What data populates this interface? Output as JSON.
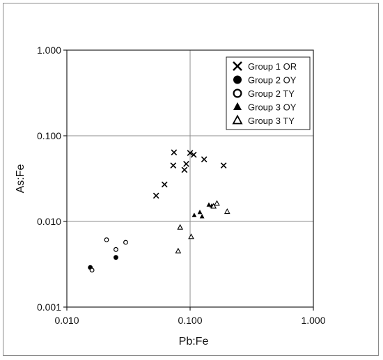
{
  "chart_data": {
    "type": "scatter",
    "xscale": "log",
    "yscale": "log",
    "xlim": [
      0.01,
      1
    ],
    "ylim": [
      0.001,
      1
    ],
    "xlabel": "Pb:Fe",
    "ylabel": "As:Fe",
    "xticks": [
      "0.010",
      "0.100",
      "1.000"
    ],
    "yticks": [
      "0.001",
      "0.010",
      "0.100",
      "1.000"
    ],
    "grid": true,
    "legend_position": "top-right",
    "series": [
      {
        "name": "Group 1 OR",
        "marker": "x",
        "points": [
          {
            "x": 0.053,
            "y": 0.02
          },
          {
            "x": 0.062,
            "y": 0.027
          },
          {
            "x": 0.073,
            "y": 0.045
          },
          {
            "x": 0.074,
            "y": 0.064
          },
          {
            "x": 0.09,
            "y": 0.04
          },
          {
            "x": 0.093,
            "y": 0.047
          },
          {
            "x": 0.1,
            "y": 0.063
          },
          {
            "x": 0.107,
            "y": 0.06
          },
          {
            "x": 0.13,
            "y": 0.053
          },
          {
            "x": 0.187,
            "y": 0.045
          }
        ]
      },
      {
        "name": "Group 2 OY",
        "marker": "filled-circle",
        "points": [
          {
            "x": 0.0155,
            "y": 0.0029
          },
          {
            "x": 0.025,
            "y": 0.0038
          }
        ]
      },
      {
        "name": "Group 2 TY",
        "marker": "open-circle",
        "points": [
          {
            "x": 0.016,
            "y": 0.0027
          },
          {
            "x": 0.021,
            "y": 0.0061
          },
          {
            "x": 0.025,
            "y": 0.0047
          },
          {
            "x": 0.03,
            "y": 0.0057
          }
        ]
      },
      {
        "name": "Group 3 OY",
        "marker": "filled-triangle",
        "points": [
          {
            "x": 0.108,
            "y": 0.0118
          },
          {
            "x": 0.12,
            "y": 0.0128
          },
          {
            "x": 0.125,
            "y": 0.0114
          },
          {
            "x": 0.142,
            "y": 0.0156
          },
          {
            "x": 0.15,
            "y": 0.0152
          }
        ]
      },
      {
        "name": "Group 3 TY",
        "marker": "open-triangle",
        "points": [
          {
            "x": 0.08,
            "y": 0.0045
          },
          {
            "x": 0.083,
            "y": 0.0085
          },
          {
            "x": 0.102,
            "y": 0.0066
          },
          {
            "x": 0.155,
            "y": 0.015
          },
          {
            "x": 0.165,
            "y": 0.0162
          },
          {
            "x": 0.2,
            "y": 0.013
          }
        ]
      }
    ]
  }
}
